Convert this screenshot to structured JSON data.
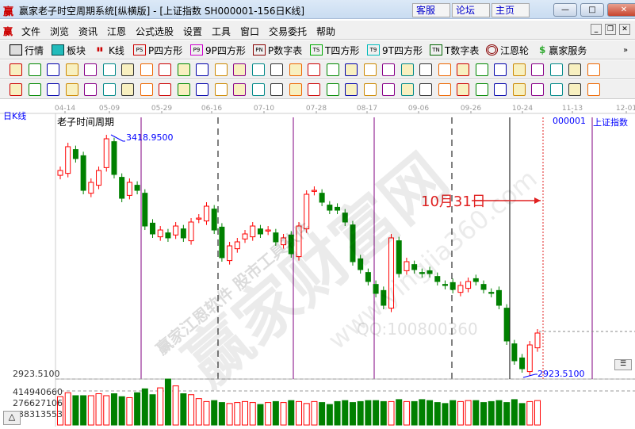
{
  "window": {
    "title": "赢家老子时空周期系统[纵横版] - [上证指数  SH000001-156日K线]",
    "links": [
      "客服",
      "论坛",
      "主页"
    ]
  },
  "menu": [
    "文件",
    "浏览",
    "资讯",
    "江恩",
    "公式选股",
    "设置",
    "工具",
    "窗口",
    "交易委托",
    "帮助"
  ],
  "toolbar": [
    {
      "label": "行情",
      "icon": "table-icon"
    },
    {
      "label": "板块",
      "icon": "blocks-icon"
    },
    {
      "label": "K线",
      "icon": "candlestick-icon"
    },
    {
      "label": "P四方形",
      "icon": "PS"
    },
    {
      "label": "9P四方形",
      "icon": "P9"
    },
    {
      "label": "P数字表",
      "icon": "PN"
    },
    {
      "label": "T四方形",
      "icon": "TS"
    },
    {
      "label": "9T四方形",
      "icon": "T9"
    },
    {
      "label": "T数字表",
      "icon": "TN"
    },
    {
      "label": "江恩轮",
      "icon": "gann-wheel-icon"
    },
    {
      "label": "赢家服务",
      "icon": "dollar-icon"
    }
  ],
  "chart": {
    "period_label": "日K线",
    "indicator_title": "老子时间周期",
    "symbol": "000001",
    "symbol_name": "上证指数",
    "high_label": "3418.9500",
    "low_label": "2923.5100",
    "annotation": "10月31日",
    "watermark": "赢家财富网",
    "watermark2": "赢家江恩软件 股市工具软件",
    "watermark_url": "www.yingjia360.com",
    "watermark_qq": "QQ:100800360",
    "dates": [
      "04-14",
      "05-09",
      "05-29",
      "06-16",
      "07-10",
      "07-28",
      "08-17",
      "09-06",
      "09-26",
      "10-24",
      "11-13",
      "12-01"
    ],
    "price_range": [
      2923.51,
      3418.95
    ],
    "closes": [
      3344.6,
      3394.2,
      3369.4,
      3303.3,
      3319.9,
      3344.6,
      3410.7,
      3336.4,
      3286.8,
      3319.9,
      3303.3,
      3229.0,
      3212.5,
      3220.7,
      3204.3,
      3229.0,
      3204.3,
      3237.3,
      3245.5,
      3270.3,
      3220.7,
      3163.0,
      3187.7,
      3196.0,
      3212.5,
      3229.0,
      3212.5,
      3220.7,
      3196.0,
      3204.3,
      3171.2,
      3229.0,
      3295.1,
      3303.3,
      3278.6,
      3262.0,
      3262.0,
      3237.3,
      3154.7,
      3138.2,
      3113.4,
      3088.7,
      3063.9,
      3204.3,
      3129.9,
      3154.7,
      3138.2,
      3129.9,
      3129.9,
      3113.4,
      3105.2,
      3096.9,
      3105.2,
      3113.4,
      3113.4,
      3096.9,
      3088.7,
      3063.9,
      2989.6,
      2948.3,
      2931.8,
      2981.3,
      3006.1
    ],
    "volume_labels": [
      "414940660",
      "276627106",
      "138313553"
    ],
    "volumes": [
      290,
      330,
      300,
      300,
      300,
      320,
      300,
      320,
      290,
      280,
      330,
      370,
      310,
      380,
      470,
      400,
      320,
      310,
      270,
      240,
      250,
      230,
      220,
      230,
      240,
      230,
      210,
      230,
      240,
      230,
      250,
      240,
      220,
      240,
      230,
      210,
      240,
      250,
      230,
      240,
      250,
      250,
      240,
      240,
      260,
      240,
      240,
      260,
      250,
      230,
      220,
      250,
      240,
      250,
      250,
      230,
      240,
      250,
      230,
      260,
      220,
      240,
      250
    ],
    "colors": {
      "up": "#ff0000",
      "down": "#008000",
      "cycle": "#800080",
      "annotation": "#e02020",
      "label": "#0000ff"
    }
  }
}
